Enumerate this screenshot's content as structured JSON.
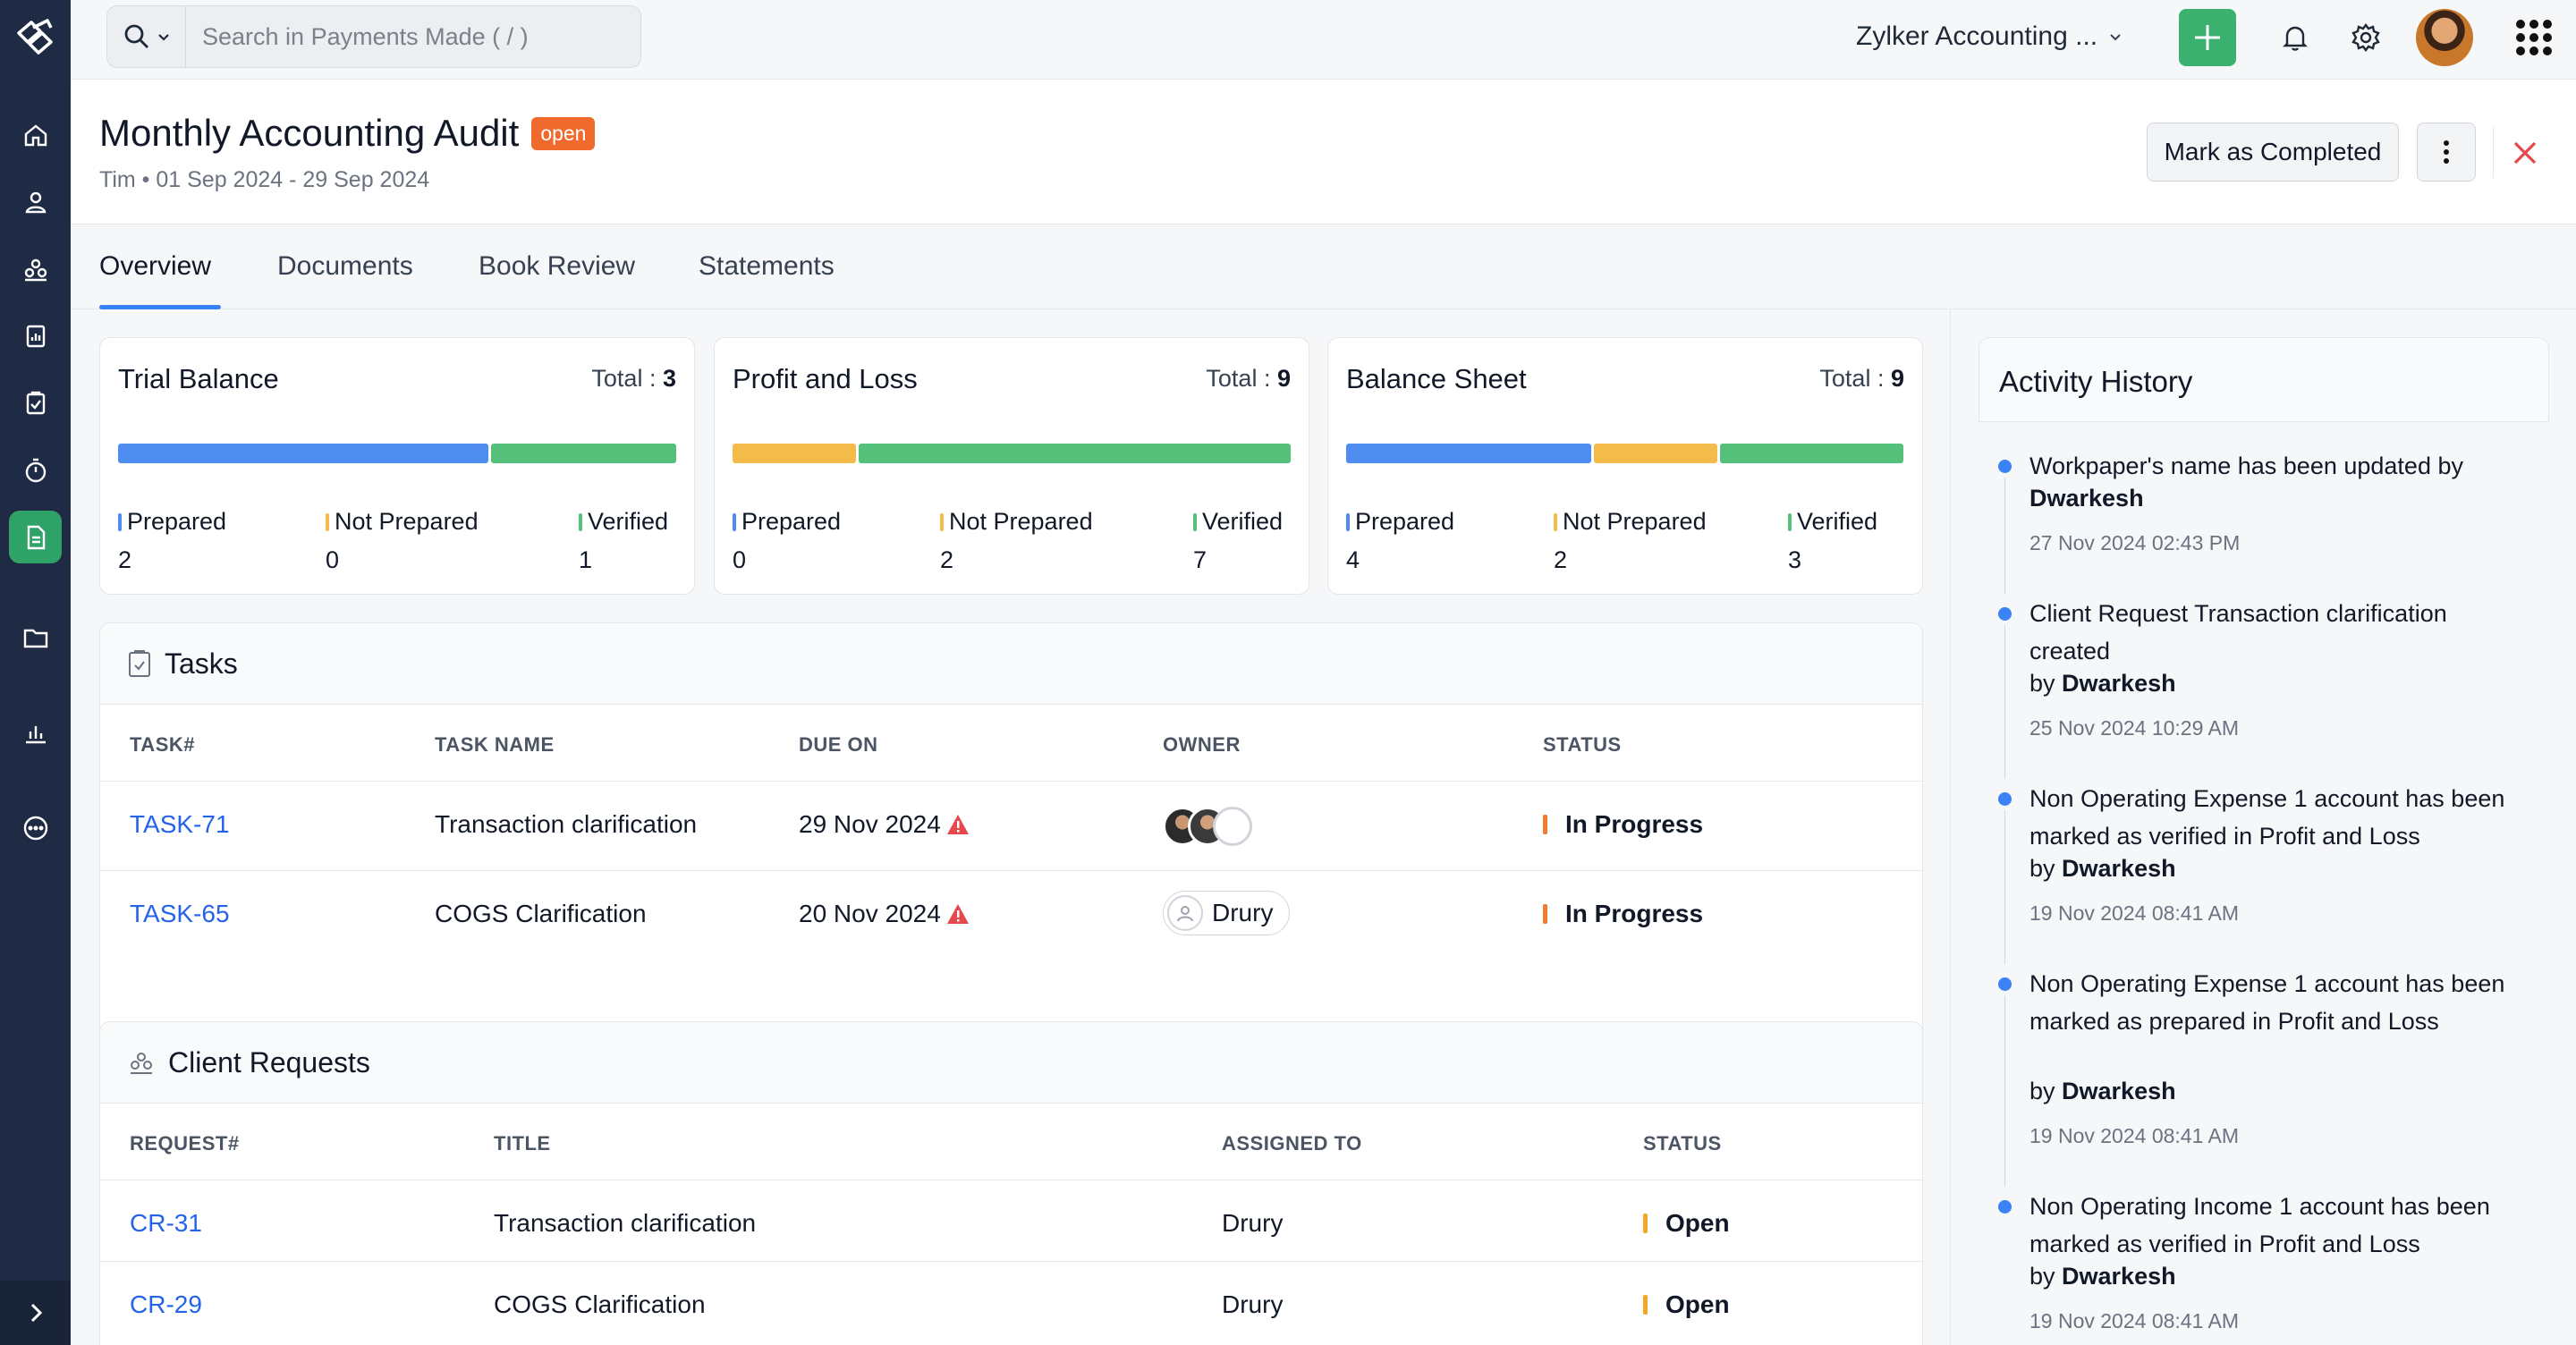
{
  "topbar": {
    "search_placeholder": "Search in Payments Made ( / )",
    "org_name": "Zylker Accounting ...",
    "accent": "#3bb16f"
  },
  "header": {
    "title": "Monthly Accounting Audit",
    "status_badge": "open",
    "subtitle": "Tim • 01 Sep 2024 - 29 Sep 2024",
    "mark_completed_label": "Mark as Completed"
  },
  "tabs": [
    "Overview",
    "Documents",
    "Book Review",
    "Statements"
  ],
  "summary_cards": [
    {
      "title": "Trial Balance",
      "total_label": "Total :",
      "total": "3",
      "progress": [
        {
          "status": "Prepared",
          "fraction": 0.667
        },
        {
          "status": "Verified",
          "fraction": 0.333
        }
      ],
      "stats": [
        {
          "label": "Prepared",
          "value": "2"
        },
        {
          "label": "Not Prepared",
          "value": "0"
        },
        {
          "label": "Verified",
          "value": "1"
        }
      ]
    },
    {
      "title": "Profit and Loss",
      "total_label": "Total :",
      "total": "9",
      "progress": [
        {
          "status": "Not Prepared",
          "fraction": 0.222
        },
        {
          "status": "Verified",
          "fraction": 0.778
        }
      ],
      "stats": [
        {
          "label": "Prepared",
          "value": "0"
        },
        {
          "label": "Not Prepared",
          "value": "2"
        },
        {
          "label": "Verified",
          "value": "7"
        }
      ]
    },
    {
      "title": "Balance Sheet",
      "total_label": "Total :",
      "total": "9",
      "progress": [
        {
          "status": "Prepared",
          "fraction": 0.444
        },
        {
          "status": "Not Prepared",
          "fraction": 0.222
        },
        {
          "status": "Verified",
          "fraction": 0.333
        }
      ],
      "stats": [
        {
          "label": "Prepared",
          "value": "4"
        },
        {
          "label": "Not Prepared",
          "value": "2"
        },
        {
          "label": "Verified",
          "value": "3"
        }
      ]
    }
  ],
  "status_colors": {
    "Prepared": "#4f8ef0",
    "Not Prepared": "#f2bb4a",
    "Verified": "#54c07a",
    "In Progress": "#f07a2d",
    "Open": "#f5a623"
  },
  "tasks": {
    "title": "Tasks",
    "columns": [
      "TASK#",
      "TASK NAME",
      "DUE ON",
      "OWNER",
      "STATUS"
    ],
    "rows": [
      {
        "id": "TASK-71",
        "name": "Transaction clarification",
        "due": "29 Nov 2024",
        "owner": "",
        "status": "In Progress"
      },
      {
        "id": "TASK-65",
        "name": "COGS Clarification",
        "due": "20 Nov 2024",
        "owner": "Drury",
        "status": "In Progress"
      }
    ]
  },
  "client_requests": {
    "title": "Client Requests",
    "columns": [
      "REQUEST#",
      "TITLE",
      "ASSIGNED TO",
      "STATUS"
    ],
    "rows": [
      {
        "id": "CR-31",
        "title": "Transaction clarification",
        "assigned": "Drury",
        "status": "Open"
      },
      {
        "id": "CR-29",
        "title": "COGS Clarification",
        "assigned": "Drury",
        "status": "Open"
      }
    ]
  },
  "activity": {
    "title": "Activity History",
    "items": [
      {
        "text": "Workpaper's name has been updated by",
        "by_prefix": "",
        "by": "Dwarkesh",
        "time": "27 Nov 2024 02:43 PM"
      },
      {
        "text": "Client Request Transaction clarification created",
        "by_prefix": "by ",
        "by": "Dwarkesh",
        "time": "25 Nov 2024 10:29 AM"
      },
      {
        "text": "Non Operating Expense 1 account has been marked as verified in Profit and Loss",
        "by_prefix": "by ",
        "by": "Dwarkesh",
        "time": "19 Nov 2024 08:41 AM"
      },
      {
        "text": "Non Operating Expense 1 account has been marked as prepared in Profit and Loss",
        "by_prefix": "by ",
        "by": "Dwarkesh",
        "time": "19 Nov 2024 08:41 AM"
      },
      {
        "text": "Non Operating Income 1 account has been marked as verified in Profit and Loss",
        "by_prefix": "by ",
        "by": "Dwarkesh",
        "time": "19 Nov 2024 08:41 AM"
      }
    ]
  },
  "sidebar": {
    "icons": [
      "home-icon",
      "contacts-icon",
      "client-requests-icon",
      "reports-icon",
      "tasks-icon",
      "timer-icon",
      "workpapers-icon",
      "folder-icon",
      "analytics-icon",
      "more-icon"
    ],
    "active": "workpapers-icon"
  }
}
